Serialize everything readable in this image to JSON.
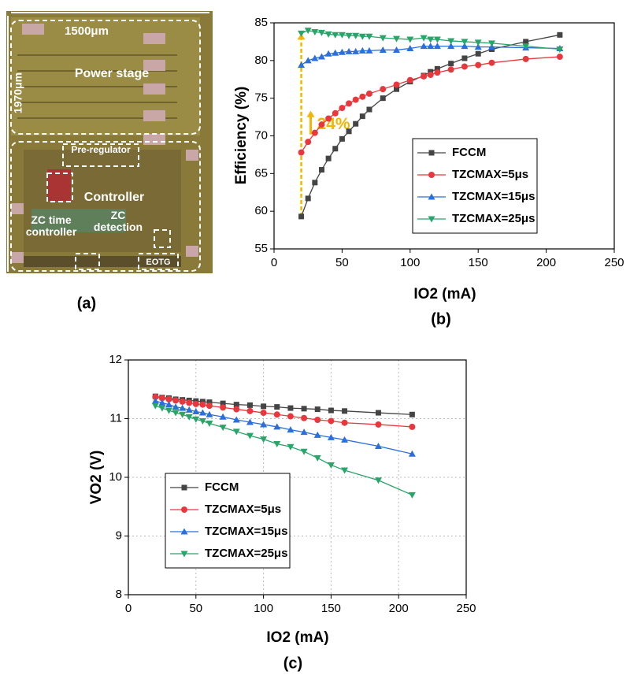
{
  "panel_a": {
    "width_label": "1500μm",
    "height_label": "1970μm",
    "power_stage": "Power stage",
    "pre_regulator": "Pre-regulator",
    "controller": "Controller",
    "zc_time_controller": "ZC time controller",
    "zc_detection": "ZC detection",
    "eotg": "EOTG",
    "panel_label": "(a)"
  },
  "chart_data": [
    {
      "type": "line",
      "panel_label": "(b)",
      "xlabel": "IO2 (mA)",
      "ylabel": "Efficiency (%)",
      "annotation": "24%",
      "x": [
        20,
        25,
        30,
        35,
        40,
        45,
        50,
        55,
        60,
        65,
        70,
        80,
        90,
        100,
        110,
        115,
        120,
        130,
        140,
        150,
        160,
        185,
        210
      ],
      "xlim": [
        0,
        250
      ],
      "xticks": [
        0,
        50,
        100,
        150,
        200,
        250
      ],
      "ylim": [
        55,
        85
      ],
      "yticks": [
        55,
        60,
        65,
        70,
        75,
        80,
        85
      ],
      "grid": false,
      "legend": "lower right",
      "series": [
        {
          "name": "FCCM",
          "color": "#444444",
          "marker": "square",
          "values": [
            59.3,
            61.7,
            63.8,
            65.5,
            67,
            68.3,
            69.6,
            70.6,
            71.6,
            72.6,
            73.5,
            75,
            76.2,
            77.2,
            78,
            78.5,
            78.9,
            79.6,
            80.3,
            80.9,
            81.5,
            82.5,
            83.4
          ]
        },
        {
          "name": "TZCMAX=5μs",
          "color": "#e8383d",
          "marker": "circle",
          "values": [
            67.8,
            69.2,
            70.4,
            71.5,
            72.3,
            73,
            73.7,
            74.3,
            74.8,
            75.2,
            75.6,
            76.2,
            76.8,
            77.4,
            77.9,
            78.1,
            78.4,
            78.8,
            79.2,
            79.4,
            79.7,
            80.2,
            80.5
          ]
        },
        {
          "name": "TZCMAX=15μs",
          "color": "#2a6fdc",
          "marker": "up",
          "values": [
            79.4,
            80,
            80.3,
            80.5,
            80.9,
            81,
            81.1,
            81.2,
            81.2,
            81.3,
            81.3,
            81.4,
            81.4,
            81.6,
            81.9,
            81.9,
            81.9,
            81.9,
            81.9,
            81.8,
            81.8,
            81.7,
            81.6
          ]
        },
        {
          "name": "TZCMAX=25μs",
          "color": "#2aa56a",
          "marker": "down",
          "values": [
            83.6,
            84,
            83.8,
            83.7,
            83.5,
            83.4,
            83.4,
            83.3,
            83.3,
            83.2,
            83.2,
            83,
            82.9,
            82.8,
            83,
            82.8,
            82.8,
            82.6,
            82.5,
            82.4,
            82.3,
            81.9,
            81.5
          ]
        }
      ]
    },
    {
      "type": "line",
      "panel_label": "(c)",
      "xlabel": "IO2 (mA)",
      "ylabel": "VO2 (V)",
      "x": [
        20,
        25,
        30,
        35,
        40,
        45,
        50,
        55,
        60,
        70,
        80,
        90,
        100,
        110,
        120,
        130,
        140,
        150,
        160,
        185,
        210
      ],
      "xlim": [
        0,
        250
      ],
      "xticks": [
        0,
        50,
        100,
        150,
        200,
        250
      ],
      "ylim": [
        8,
        12
      ],
      "yticks": [
        8,
        9,
        10,
        11,
        12
      ],
      "grid": true,
      "legend": "lower left",
      "series": [
        {
          "name": "FCCM",
          "color": "#444444",
          "marker": "square",
          "values": [
            11.38,
            11.36,
            11.35,
            11.33,
            11.32,
            11.31,
            11.3,
            11.29,
            11.28,
            11.26,
            11.24,
            11.23,
            11.21,
            11.2,
            11.18,
            11.17,
            11.16,
            11.14,
            11.13,
            11.1,
            11.07
          ]
        },
        {
          "name": "TZCMAX=5μs",
          "color": "#e8383d",
          "marker": "circle",
          "values": [
            11.37,
            11.35,
            11.33,
            11.31,
            11.29,
            11.27,
            11.25,
            11.24,
            11.22,
            11.19,
            11.16,
            11.13,
            11.1,
            11.07,
            11.04,
            11.01,
            10.98,
            10.96,
            10.93,
            10.9,
            10.86
          ]
        },
        {
          "name": "TZCMAX=15μs",
          "color": "#2a6fdc",
          "marker": "up",
          "values": [
            11.3,
            11.27,
            11.24,
            11.2,
            11.18,
            11.15,
            11.12,
            11.1,
            11.07,
            11.03,
            10.98,
            10.94,
            10.9,
            10.86,
            10.81,
            10.77,
            10.72,
            10.68,
            10.64,
            10.53,
            10.4
          ]
        },
        {
          "name": "TZCMAX=25μs",
          "color": "#2aa56a",
          "marker": "down",
          "values": [
            11.22,
            11.18,
            11.14,
            11.1,
            11.07,
            11.03,
            10.99,
            10.96,
            10.92,
            10.85,
            10.78,
            10.71,
            10.65,
            10.57,
            10.52,
            10.44,
            10.33,
            10.21,
            10.12,
            9.95,
            9.7
          ]
        }
      ]
    }
  ]
}
